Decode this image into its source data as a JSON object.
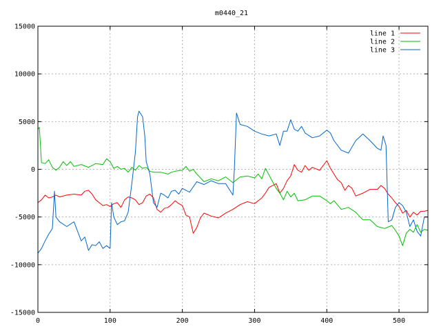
{
  "chart_data": {
    "type": "line",
    "title": "m0440_21",
    "xlabel": "",
    "ylabel": "",
    "xlim": [
      0,
      540
    ],
    "ylim": [
      -15000,
      15000
    ],
    "x_ticks": [
      0,
      100,
      200,
      300,
      400,
      500
    ],
    "y_ticks": [
      -15000,
      -10000,
      -5000,
      0,
      5000,
      10000,
      15000
    ],
    "grid": true,
    "legend_position": "top-right",
    "series": [
      {
        "name": "line 1",
        "color": "#ff0000",
        "points": [
          [
            0,
            -3500
          ],
          [
            5,
            -3200
          ],
          [
            10,
            -2700
          ],
          [
            15,
            -3000
          ],
          [
            20,
            -2900
          ],
          [
            25,
            -2700
          ],
          [
            30,
            -2900
          ],
          [
            40,
            -2700
          ],
          [
            50,
            -2600
          ],
          [
            60,
            -2700
          ],
          [
            65,
            -2300
          ],
          [
            70,
            -2200
          ],
          [
            75,
            -2600
          ],
          [
            80,
            -3200
          ],
          [
            85,
            -3500
          ],
          [
            90,
            -3800
          ],
          [
            95,
            -3700
          ],
          [
            100,
            -3900
          ],
          [
            105,
            -3600
          ],
          [
            110,
            -3500
          ],
          [
            115,
            -4000
          ],
          [
            120,
            -3200
          ],
          [
            125,
            -2900
          ],
          [
            130,
            -3000
          ],
          [
            135,
            -3200
          ],
          [
            140,
            -3700
          ],
          [
            145,
            -3500
          ],
          [
            150,
            -2800
          ],
          [
            155,
            -2600
          ],
          [
            160,
            -3000
          ],
          [
            165,
            -4200
          ],
          [
            170,
            -4500
          ],
          [
            175,
            -4100
          ],
          [
            180,
            -4000
          ],
          [
            185,
            -3700
          ],
          [
            190,
            -3300
          ],
          [
            195,
            -3600
          ],
          [
            200,
            -3800
          ],
          [
            205,
            -4800
          ],
          [
            210,
            -5000
          ],
          [
            215,
            -6700
          ],
          [
            220,
            -6100
          ],
          [
            225,
            -5100
          ],
          [
            230,
            -4600
          ],
          [
            240,
            -4900
          ],
          [
            250,
            -5100
          ],
          [
            260,
            -4600
          ],
          [
            270,
            -4200
          ],
          [
            280,
            -3700
          ],
          [
            290,
            -3400
          ],
          [
            300,
            -3600
          ],
          [
            310,
            -3000
          ],
          [
            315,
            -2500
          ],
          [
            320,
            -1900
          ],
          [
            330,
            -1500
          ],
          [
            335,
            -2500
          ],
          [
            340,
            -2000
          ],
          [
            345,
            -1200
          ],
          [
            350,
            -700
          ],
          [
            355,
            500
          ],
          [
            360,
            -100
          ],
          [
            365,
            -300
          ],
          [
            370,
            400
          ],
          [
            375,
            -100
          ],
          [
            380,
            200
          ],
          [
            390,
            -100
          ],
          [
            395,
            400
          ],
          [
            400,
            900
          ],
          [
            405,
            100
          ],
          [
            410,
            -500
          ],
          [
            415,
            -1100
          ],
          [
            420,
            -1400
          ],
          [
            425,
            -2200
          ],
          [
            430,
            -1700
          ],
          [
            435,
            -2000
          ],
          [
            440,
            -2800
          ],
          [
            450,
            -2500
          ],
          [
            460,
            -2100
          ],
          [
            470,
            -2100
          ],
          [
            475,
            -1700
          ],
          [
            480,
            -2000
          ],
          [
            485,
            -2600
          ],
          [
            490,
            -3000
          ],
          [
            495,
            -3500
          ],
          [
            500,
            -3900
          ],
          [
            505,
            -4600
          ],
          [
            510,
            -4300
          ],
          [
            515,
            -5000
          ],
          [
            520,
            -4500
          ],
          [
            525,
            -4800
          ],
          [
            530,
            -4400
          ],
          [
            535,
            -4400
          ],
          [
            540,
            -4300
          ]
        ]
      },
      {
        "name": "line 2",
        "color": "#00bf00",
        "points": [
          [
            0,
            4200
          ],
          [
            2,
            4400
          ],
          [
            5,
            700
          ],
          [
            10,
            600
          ],
          [
            15,
            1000
          ],
          [
            20,
            200
          ],
          [
            25,
            -100
          ],
          [
            30,
            200
          ],
          [
            35,
            800
          ],
          [
            40,
            400
          ],
          [
            45,
            800
          ],
          [
            50,
            300
          ],
          [
            60,
            500
          ],
          [
            70,
            200
          ],
          [
            80,
            600
          ],
          [
            90,
            500
          ],
          [
            95,
            1100
          ],
          [
            100,
            800
          ],
          [
            105,
            100
          ],
          [
            110,
            300
          ],
          [
            115,
            0
          ],
          [
            120,
            100
          ],
          [
            125,
            -300
          ],
          [
            130,
            200
          ],
          [
            135,
            -100
          ],
          [
            140,
            400
          ],
          [
            145,
            100
          ],
          [
            150,
            200
          ],
          [
            155,
            -200
          ],
          [
            160,
            -300
          ],
          [
            170,
            -300
          ],
          [
            180,
            -500
          ],
          [
            185,
            -300
          ],
          [
            190,
            -200
          ],
          [
            200,
            -100
          ],
          [
            205,
            300
          ],
          [
            210,
            -200
          ],
          [
            215,
            0
          ],
          [
            220,
            -500
          ],
          [
            230,
            -1300
          ],
          [
            240,
            -1000
          ],
          [
            250,
            -1200
          ],
          [
            260,
            -800
          ],
          [
            270,
            -1400
          ],
          [
            280,
            -800
          ],
          [
            290,
            -700
          ],
          [
            300,
            -900
          ],
          [
            305,
            -500
          ],
          [
            310,
            -1000
          ],
          [
            315,
            100
          ],
          [
            320,
            -600
          ],
          [
            325,
            -1300
          ],
          [
            330,
            -2000
          ],
          [
            335,
            -2500
          ],
          [
            340,
            -3200
          ],
          [
            345,
            -2300
          ],
          [
            350,
            -2900
          ],
          [
            355,
            -2500
          ],
          [
            360,
            -3300
          ],
          [
            370,
            -3200
          ],
          [
            380,
            -2800
          ],
          [
            390,
            -2800
          ],
          [
            400,
            -3300
          ],
          [
            405,
            -3600
          ],
          [
            410,
            -3300
          ],
          [
            420,
            -4200
          ],
          [
            430,
            -4000
          ],
          [
            440,
            -4500
          ],
          [
            450,
            -5300
          ],
          [
            460,
            -5300
          ],
          [
            470,
            -6000
          ],
          [
            480,
            -6200
          ],
          [
            490,
            -5900
          ],
          [
            495,
            -6400
          ],
          [
            500,
            -7000
          ],
          [
            505,
            -8000
          ],
          [
            510,
            -6700
          ],
          [
            515,
            -6300
          ],
          [
            520,
            -6600
          ],
          [
            525,
            -5800
          ],
          [
            530,
            -6600
          ],
          [
            535,
            -6300
          ],
          [
            540,
            -6400
          ]
        ]
      },
      {
        "name": "line 3",
        "color": "#0066cc",
        "points": [
          [
            0,
            -8800
          ],
          [
            5,
            -8300
          ],
          [
            10,
            -7500
          ],
          [
            15,
            -6800
          ],
          [
            20,
            -6200
          ],
          [
            23,
            -2300
          ],
          [
            25,
            -5000
          ],
          [
            30,
            -5500
          ],
          [
            40,
            -6000
          ],
          [
            50,
            -5500
          ],
          [
            55,
            -6500
          ],
          [
            60,
            -7500
          ],
          [
            65,
            -7100
          ],
          [
            70,
            -8500
          ],
          [
            75,
            -7900
          ],
          [
            80,
            -8000
          ],
          [
            85,
            -7600
          ],
          [
            90,
            -8300
          ],
          [
            95,
            -8000
          ],
          [
            100,
            -8300
          ],
          [
            102,
            -3500
          ],
          [
            105,
            -5000
          ],
          [
            110,
            -5800
          ],
          [
            115,
            -5500
          ],
          [
            120,
            -5400
          ],
          [
            125,
            -4500
          ],
          [
            130,
            -1500
          ],
          [
            135,
            1800
          ],
          [
            138,
            5500
          ],
          [
            140,
            6100
          ],
          [
            145,
            5500
          ],
          [
            148,
            3500
          ],
          [
            150,
            800
          ],
          [
            155,
            -500
          ],
          [
            160,
            -3500
          ],
          [
            165,
            -4000
          ],
          [
            170,
            -2500
          ],
          [
            175,
            -2700
          ],
          [
            180,
            -3000
          ],
          [
            185,
            -2300
          ],
          [
            190,
            -2200
          ],
          [
            195,
            -2600
          ],
          [
            200,
            -2000
          ],
          [
            210,
            -2400
          ],
          [
            220,
            -1300
          ],
          [
            230,
            -1600
          ],
          [
            240,
            -1200
          ],
          [
            250,
            -1500
          ],
          [
            260,
            -1500
          ],
          [
            270,
            -2700
          ],
          [
            272,
            0
          ],
          [
            275,
            5900
          ],
          [
            280,
            4700
          ],
          [
            290,
            4500
          ],
          [
            300,
            4000
          ],
          [
            310,
            3700
          ],
          [
            320,
            3500
          ],
          [
            330,
            3700
          ],
          [
            335,
            2500
          ],
          [
            340,
            4000
          ],
          [
            345,
            4000
          ],
          [
            350,
            5200
          ],
          [
            355,
            4200
          ],
          [
            360,
            4000
          ],
          [
            365,
            4500
          ],
          [
            370,
            3800
          ],
          [
            380,
            3300
          ],
          [
            390,
            3500
          ],
          [
            400,
            4100
          ],
          [
            405,
            3800
          ],
          [
            410,
            3000
          ],
          [
            420,
            2000
          ],
          [
            430,
            1700
          ],
          [
            440,
            3000
          ],
          [
            450,
            3700
          ],
          [
            460,
            3000
          ],
          [
            470,
            2200
          ],
          [
            475,
            2000
          ],
          [
            478,
            3500
          ],
          [
            482,
            2500
          ],
          [
            485,
            -5500
          ],
          [
            490,
            -5300
          ],
          [
            495,
            -4000
          ],
          [
            500,
            -3500
          ],
          [
            505,
            -3800
          ],
          [
            510,
            -4500
          ],
          [
            515,
            -6000
          ],
          [
            520,
            -5300
          ],
          [
            525,
            -6500
          ],
          [
            530,
            -7000
          ],
          [
            535,
            -5000
          ],
          [
            540,
            -5000
          ]
        ]
      }
    ]
  }
}
